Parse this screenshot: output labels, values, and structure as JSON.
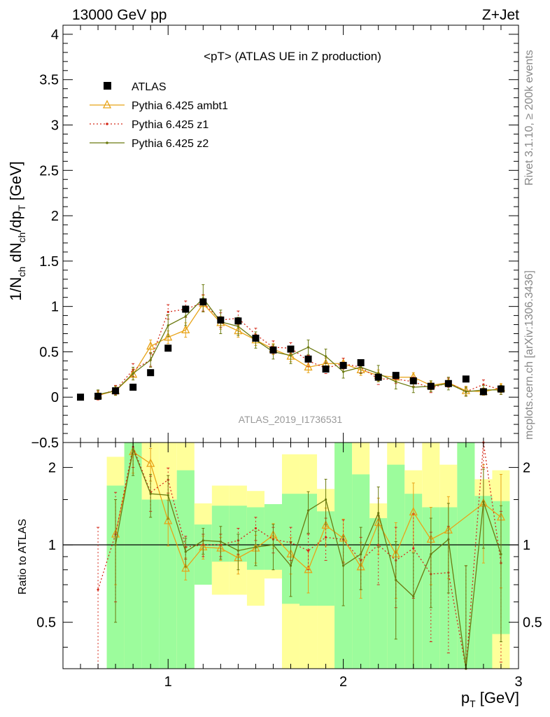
{
  "header": {
    "left": "13000 GeV pp",
    "right": "Z+Jet"
  },
  "side": {
    "rivet": "Rivet 3.1.10, ≥ 200k events",
    "mcplots": "mcplots.cern.ch [arXiv:1306.3436]"
  },
  "plot_title": "<pT> (ATLAS UE in Z production)",
  "analysis_id": "ATLAS_2019_I1736531",
  "colors": {
    "atlas": "#000000",
    "ambt1": "#e8a317",
    "z1": "#d42a1a",
    "z2": "#6b7a10",
    "band_yellow": "#ffff9a",
    "band_green": "#9cfc9c"
  },
  "chart_data": [
    {
      "type": "line",
      "ylabel_main": "1/N",
      "ylabel_sub1": "ch",
      "ylabel_mid": " dN",
      "ylabel_sub2": "ch",
      "ylabel_end": "/dp",
      "ylabel_sub3": "T",
      "ylabel_unit": " [GeV]",
      "xlim": [
        0.4,
        3.0
      ],
      "ylim": [
        -0.5,
        4.1
      ],
      "yticks": [
        -0.5,
        0,
        0.5,
        1,
        1.5,
        2,
        2.5,
        3,
        3.5,
        4
      ],
      "ytick_labels": [
        "−0.5",
        "0",
        "0.5",
        "1",
        "1.5",
        "2",
        "2.5",
        "3",
        "3.5",
        "4"
      ],
      "legend": [
        "ATLAS",
        "Pythia 6.425 ambt1",
        "Pythia 6.425 z1",
        "Pythia 6.425 z2"
      ],
      "legend_position": "top-left",
      "series": [
        {
          "name": "ATLAS",
          "style": "markers",
          "x": [
            0.5,
            0.6,
            0.7,
            0.8,
            0.9,
            1.0,
            1.1,
            1.2,
            1.3,
            1.4,
            1.5,
            1.6,
            1.7,
            1.8,
            1.9,
            2.0,
            2.1,
            2.2,
            2.3,
            2.4,
            2.5,
            2.6,
            2.7,
            2.8,
            2.9
          ],
          "y": [
            0.0,
            0.01,
            0.07,
            0.11,
            0.27,
            0.54,
            0.97,
            1.05,
            0.85,
            0.84,
            0.65,
            0.52,
            0.53,
            0.42,
            0.31,
            0.35,
            0.38,
            0.22,
            0.24,
            0.18,
            0.12,
            0.15,
            0.2,
            0.06,
            0.09
          ]
        },
        {
          "name": "Pythia 6.425 ambt1",
          "style": "triangles",
          "x": [
            0.6,
            0.7,
            0.8,
            0.9,
            1.0,
            1.1,
            1.2,
            1.3,
            1.4,
            1.5,
            1.6,
            1.7,
            1.8,
            1.9,
            2.0,
            2.1,
            2.2,
            2.3,
            2.4,
            2.5,
            2.6,
            2.7,
            2.8,
            2.9
          ],
          "y": [
            0.02,
            0.07,
            0.25,
            0.56,
            0.66,
            0.74,
            1.03,
            0.82,
            0.73,
            0.63,
            0.53,
            0.45,
            0.33,
            0.37,
            0.37,
            0.3,
            0.24,
            0.22,
            0.22,
            0.13,
            0.16,
            0.07,
            0.06,
            0.1
          ],
          "err": [
            0.05,
            0.05,
            0.06,
            0.07,
            0.07,
            0.08,
            0.09,
            0.07,
            0.07,
            0.06,
            0.06,
            0.06,
            0.06,
            0.06,
            0.06,
            0.06,
            0.06,
            0.05,
            0.05,
            0.05,
            0.05,
            0.05,
            0.04,
            0.05
          ]
        },
        {
          "name": "Pythia 6.425 z1",
          "style": "dotted",
          "x": [
            0.6,
            0.7,
            0.8,
            0.9,
            1.0,
            1.1,
            1.2,
            1.3,
            1.4,
            1.5,
            1.6,
            1.7,
            1.8,
            1.9,
            2.0,
            2.1,
            2.2,
            2.3,
            2.4,
            2.5,
            2.6,
            2.7,
            2.8,
            2.9
          ],
          "y": [
            0.02,
            0.08,
            0.3,
            0.41,
            0.94,
            0.97,
            1.04,
            0.85,
            0.87,
            0.69,
            0.55,
            0.54,
            0.4,
            0.32,
            0.37,
            0.33,
            0.2,
            0.2,
            0.17,
            0.1,
            0.16,
            0.06,
            0.14,
            0.08
          ],
          "err": [
            0.05,
            0.05,
            0.07,
            0.07,
            0.08,
            0.09,
            0.09,
            0.08,
            0.08,
            0.07,
            0.07,
            0.06,
            0.06,
            0.06,
            0.06,
            0.06,
            0.06,
            0.05,
            0.05,
            0.05,
            0.05,
            0.05,
            0.05,
            0.05
          ]
        },
        {
          "name": "Pythia 6.425 z2",
          "style": "solid-dots",
          "x": [
            0.6,
            0.7,
            0.8,
            0.9,
            1.0,
            1.1,
            1.2,
            1.3,
            1.4,
            1.5,
            1.6,
            1.7,
            1.8,
            1.9,
            2.0,
            2.1,
            2.2,
            2.3,
            2.4,
            2.5,
            2.6,
            2.7,
            2.8,
            2.9
          ],
          "y": [
            0.03,
            0.07,
            0.26,
            0.41,
            0.79,
            0.89,
            1.09,
            0.83,
            0.78,
            0.63,
            0.5,
            0.46,
            0.55,
            0.45,
            0.28,
            0.33,
            0.26,
            0.17,
            0.11,
            0.12,
            0.15,
            0.06,
            0.08,
            0.08
          ],
          "err": [
            0.05,
            0.05,
            0.07,
            0.08,
            0.12,
            0.1,
            0.15,
            0.13,
            0.1,
            0.09,
            0.08,
            0.09,
            0.08,
            0.08,
            0.07,
            0.07,
            0.09,
            0.08,
            0.06,
            0.06,
            0.07,
            0.05,
            0.05,
            0.05
          ]
        }
      ]
    },
    {
      "type": "line",
      "ylabel": "Ratio to ATLAS",
      "xlabel": "p_T [GeV]",
      "xlabel_main": "p",
      "xlabel_sub": "T",
      "xlabel_unit": " [GeV]",
      "xlim": [
        0.4,
        3.0
      ],
      "xticks": [
        1,
        2,
        3
      ],
      "xtick_labels": [
        "1",
        "2",
        "3"
      ],
      "ylim": [
        0.33,
        2.5
      ],
      "yscale": "log",
      "yticks": [
        0.5,
        1,
        2
      ],
      "ytick_labels": [
        "0.5",
        "1",
        "2"
      ],
      "bands": {
        "bin_edges": [
          0.65,
          0.75,
          0.85,
          0.95,
          1.05,
          1.15,
          1.25,
          1.35,
          1.45,
          1.55,
          1.65,
          1.75,
          1.85,
          1.95,
          2.05,
          2.15,
          2.25,
          2.35,
          2.45,
          2.55,
          2.65,
          2.75,
          2.85,
          2.95
        ],
        "yellow_lo": [
          0.33,
          0.33,
          0.52,
          0.52,
          0.33,
          0.83,
          0.64,
          0.64,
          0.58,
          0.74,
          0.33,
          0.33,
          0.33,
          0.33,
          0.33,
          0.33,
          0.33,
          0.33,
          0.33,
          0.33,
          0.33,
          0.33,
          0.33
        ],
        "yellow_hi": [
          2.2,
          2.5,
          2.5,
          2.5,
          2.5,
          1.45,
          1.7,
          1.7,
          1.62,
          1.38,
          2.25,
          2.25,
          1.65,
          2.5,
          2.5,
          1.45,
          2.5,
          1.95,
          2.5,
          2.05,
          2.5,
          1.8,
          1.95
        ],
        "green_lo": [
          0.33,
          0.33,
          0.33,
          0.33,
          0.33,
          0.7,
          0.86,
          0.86,
          0.8,
          0.8,
          0.59,
          0.58,
          0.58,
          0.33,
          0.33,
          0.33,
          0.33,
          0.33,
          0.33,
          0.33,
          0.33,
          0.33,
          0.45
        ],
        "green_hi": [
          1.7,
          2.5,
          1.5,
          1.5,
          1.95,
          1.2,
          1.42,
          1.42,
          1.4,
          1.44,
          1.58,
          1.58,
          1.35,
          2.5,
          1.88,
          1.27,
          2.05,
          1.58,
          1.4,
          1.4,
          2.5,
          1.55,
          1.48
        ]
      },
      "series": [
        {
          "name": "Pythia 6.425 ambt1",
          "x": [
            0.7,
            0.8,
            0.9,
            1.0,
            1.1,
            1.2,
            1.3,
            1.4,
            1.5,
            1.6,
            1.7,
            1.8,
            1.9,
            2.0,
            2.1,
            2.2,
            2.3,
            2.4,
            2.5,
            2.6,
            2.8,
            2.9
          ],
          "y": [
            1.1,
            2.3,
            2.07,
            1.24,
            0.81,
            0.98,
            0.97,
            0.89,
            0.97,
            1.09,
            0.92,
            0.8,
            1.19,
            1.06,
            0.82,
            1.22,
            0.92,
            1.34,
            1.05,
            1.14,
            1.45,
            1.28
          ],
          "err": [
            0.4,
            0.4,
            0.3,
            0.25,
            0.08,
            0.1,
            0.1,
            0.12,
            0.12,
            0.12,
            0.15,
            0.15,
            0.2,
            0.2,
            0.2,
            0.3,
            0.3,
            0.4,
            0.35,
            0.4,
            0.6,
            0.6
          ]
        },
        {
          "name": "Pythia 6.425 z1",
          "x": [
            0.6,
            0.7,
            0.8,
            0.9,
            1.0,
            1.1,
            1.2,
            1.3,
            1.4,
            1.5,
            1.6,
            1.7,
            1.8,
            1.9,
            2.0,
            2.1,
            2.2,
            2.3,
            2.4,
            2.5,
            2.6,
            2.7,
            2.8,
            2.9
          ],
          "y": [
            0.67,
            1.1,
            2.4,
            1.6,
            1.79,
            0.98,
            1.0,
            1.0,
            1.04,
            1.16,
            1.05,
            1.02,
            0.95,
            1.07,
            1.05,
            0.87,
            1.0,
            0.87,
            0.97,
            0.77,
            0.78,
            0.33,
            2.5,
            0.85
          ],
          "err": [
            0.5,
            0.5,
            0.4,
            0.25,
            0.2,
            0.1,
            0.1,
            0.1,
            0.12,
            0.12,
            0.12,
            0.15,
            0.15,
            0.2,
            0.2,
            0.2,
            0.3,
            0.3,
            0.35,
            0.35,
            0.4,
            0.5,
            0.5,
            0.5
          ]
        },
        {
          "name": "Pythia 6.425 z2",
          "x": [
            0.7,
            0.8,
            0.9,
            1.0,
            1.1,
            1.2,
            1.3,
            1.4,
            1.5,
            1.6,
            1.7,
            1.8,
            1.9,
            2.0,
            2.1,
            2.2,
            2.3,
            2.4,
            2.5,
            2.6,
            2.7,
            2.8,
            2.9
          ],
          "y": [
            1.0,
            2.36,
            1.58,
            1.56,
            0.94,
            1.04,
            1.03,
            0.95,
            0.98,
            1.0,
            0.83,
            1.36,
            1.5,
            0.83,
            0.92,
            1.33,
            0.73,
            0.63,
            0.92,
            1.05,
            0.33,
            1.47,
            0.92
          ],
          "err": [
            0.5,
            0.5,
            0.3,
            0.3,
            0.12,
            0.12,
            0.15,
            0.15,
            0.15,
            0.2,
            0.2,
            0.25,
            0.3,
            0.25,
            0.25,
            0.35,
            0.3,
            0.3,
            0.35,
            0.4,
            0.5,
            0.5,
            0.5
          ]
        }
      ]
    }
  ]
}
